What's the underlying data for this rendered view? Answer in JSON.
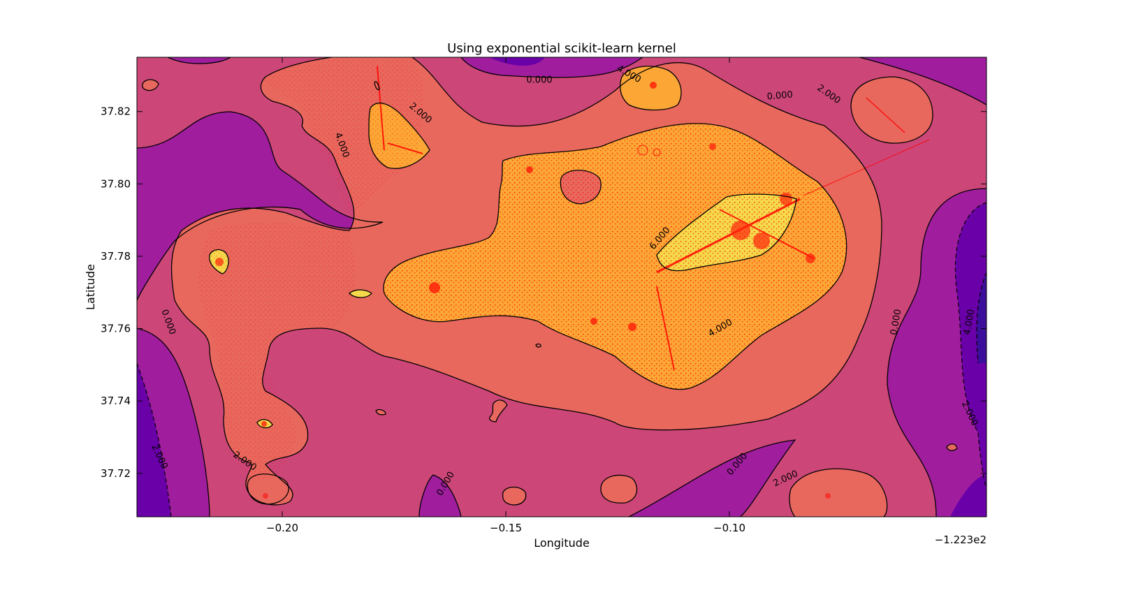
{
  "chart_data": {
    "type": "contour",
    "title": "Using exponential scikit-learn kernel",
    "xlabel": "Longitude",
    "ylabel": "Latitude",
    "x_offset_label": "−1.223e2",
    "xlim": [
      -0.2325,
      -0.0425
    ],
    "ylim": [
      37.708,
      37.835
    ],
    "xticks": [
      -0.2,
      -0.15,
      -0.1
    ],
    "xtick_labels": [
      "−0.20",
      "−0.15",
      "−0.10"
    ],
    "yticks": [
      37.72,
      37.74,
      37.76,
      37.78,
      37.8,
      37.82
    ],
    "ytick_labels": [
      "37.72",
      "37.74",
      "37.76",
      "37.78",
      "37.80",
      "37.82"
    ],
    "grid": false,
    "contour_levels": [
      -4,
      -2,
      0,
      2,
      4,
      6
    ],
    "fill_colors": {
      "-6": "#3b0f9b",
      "-4": "#6a00a8",
      "-2": "#a01e9e",
      "0": "#cc4778",
      "2": "#e8685e",
      "4": "#fca636",
      "6": "#f5d94a"
    },
    "scatter_color": "#ff0000",
    "contour_labels": [
      {
        "text": "0.000",
        "x": -0.1425,
        "y": 37.8286,
        "rotation": 0
      },
      {
        "text": "4.000",
        "x": -0.1225,
        "y": 37.8303,
        "rotation": 30
      },
      {
        "text": "0.000",
        "x": -0.0887,
        "y": 37.8243,
        "rotation": -5
      },
      {
        "text": "2.000",
        "x": -0.0778,
        "y": 37.8247,
        "rotation": 35
      },
      {
        "text": "2.000",
        "x": -0.1691,
        "y": 37.8195,
        "rotation": 40
      },
      {
        "text": "4.000",
        "x": -0.1867,
        "y": 37.8107,
        "rotation": 70
      },
      {
        "text": "6.000",
        "x": -0.1155,
        "y": 37.7849,
        "rotation": -50
      },
      {
        "text": "4.000",
        "x": -0.102,
        "y": 37.7601,
        "rotation": -30
      },
      {
        "text": "0.000",
        "x": -0.2255,
        "y": 37.7618,
        "rotation": 70
      },
      {
        "text": "0.000",
        "x": -0.0627,
        "y": 37.7618,
        "rotation": -80
      },
      {
        "text": "4.000",
        "x": -0.0463,
        "y": 37.7618,
        "rotation": -80
      },
      {
        "text": "2.000",
        "x": -0.0463,
        "y": 37.7365,
        "rotation": 65
      },
      {
        "text": "2.000",
        "x": -0.2275,
        "y": 37.7246,
        "rotation": 65
      },
      {
        "text": "2.000",
        "x": -0.2084,
        "y": 37.7233,
        "rotation": 35
      },
      {
        "text": "0.000",
        "x": -0.1634,
        "y": 37.7171,
        "rotation": -60
      },
      {
        "text": "0.000",
        "x": -0.0982,
        "y": 37.7225,
        "rotation": -50
      },
      {
        "text": "2.000",
        "x": -0.0874,
        "y": 37.7185,
        "rotation": -25
      }
    ]
  }
}
